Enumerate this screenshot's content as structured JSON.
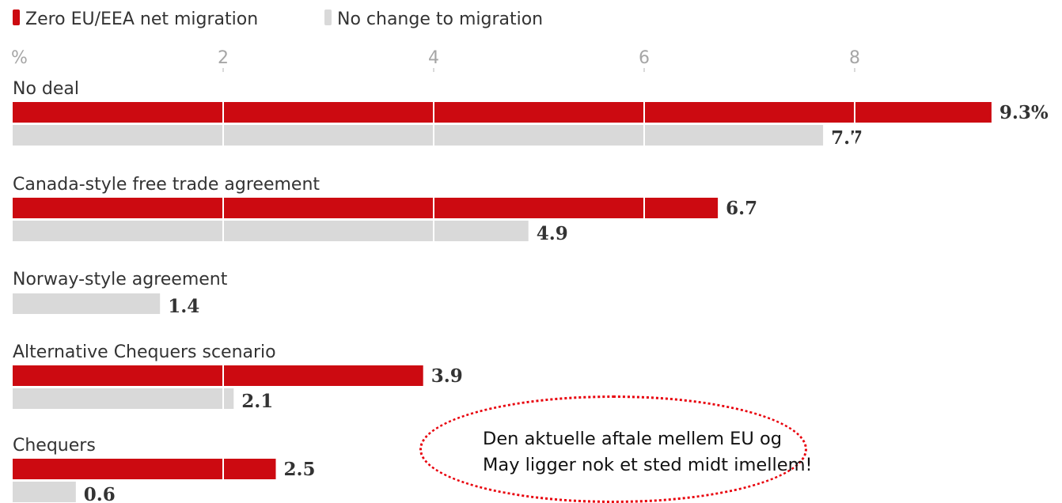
{
  "chart_data": {
    "type": "bar",
    "orientation": "horizontal",
    "unit_label": "%",
    "xlim": [
      0,
      9.3
    ],
    "ticks": [
      2,
      4,
      6,
      8
    ],
    "grid": true,
    "legend_placement": "top-left",
    "categories": [
      "No deal",
      "Canada-style free trade agreement",
      "Norway-style agreement",
      "Alternative Chequers scenario",
      "Chequers"
    ],
    "series": [
      {
        "name": "Zero EU/EEA net migration",
        "color": "#cc0a11",
        "values": [
          9.3,
          6.7,
          null,
          3.9,
          2.5
        ],
        "value_labels": [
          "9.3%",
          "6.7",
          "",
          "3.9",
          "2.5"
        ]
      },
      {
        "name": "No change to migration",
        "color": "#d9d9d9",
        "values": [
          7.7,
          4.9,
          1.4,
          2.1,
          0.6
        ],
        "value_labels": [
          "7.7",
          "4.9",
          "1.4",
          "2.1",
          "0.6"
        ]
      }
    ]
  },
  "annotation": {
    "text": "Den aktuelle aftale mellem EU og\nMay ligger nok et sted midt imellem!",
    "border_color": "#e8000b"
  }
}
